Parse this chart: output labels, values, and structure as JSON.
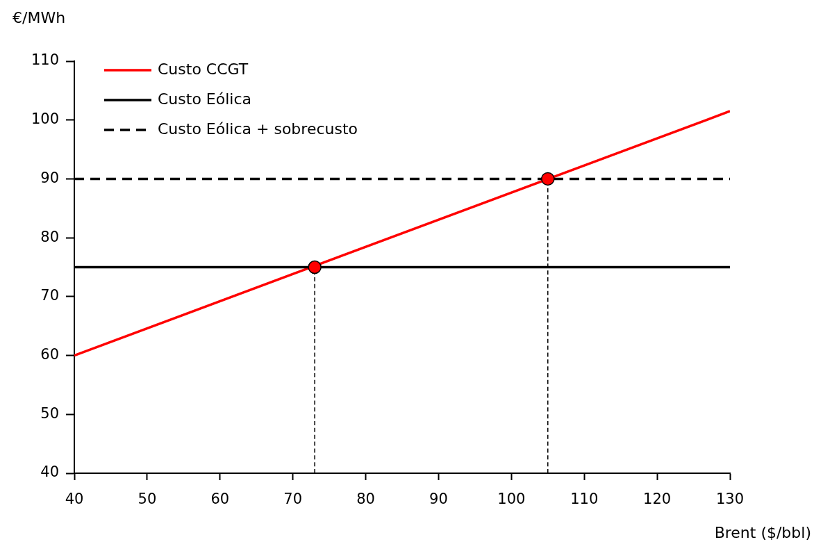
{
  "chart_data": {
    "type": "line",
    "xlabel": "Brent ($/bbl)",
    "ylabel": "€/MWh",
    "legend": "top left",
    "xlim": [
      40,
      130
    ],
    "xticks": [
      40,
      50,
      60,
      70,
      80,
      90,
      100,
      110,
      120,
      130
    ],
    "ylim": [
      40,
      110
    ],
    "yticks": [
      40,
      50,
      60,
      70,
      80,
      90,
      100,
      110
    ],
    "series": [
      {
        "name": "Custo CCGT",
        "color": "#ff0000",
        "x": [
          40,
          130
        ],
        "values": [
          60,
          101.5
        ]
      },
      {
        "name": "Custo Eólica",
        "color": "#000000",
        "x": [
          40,
          130
        ],
        "values": [
          75,
          75
        ]
      },
      {
        "name": "Custo Eólica + sobrecusto",
        "color": "#000000",
        "x": [
          40,
          130
        ],
        "values": [
          90,
          90
        ],
        "line_style": "dashed"
      },
      {
        "color": "#000000",
        "x": [
          73,
          73
        ],
        "values": [
          40,
          75
        ],
        "line_style": "dashed"
      },
      {
        "color": "#000000",
        "x": [
          105,
          105
        ],
        "values": [
          40,
          90
        ],
        "line_style": "dashed"
      },
      {
        "type": "scatter",
        "color": "#ff0000",
        "x": [
          73,
          105
        ],
        "values": [
          75,
          90
        ],
        "marker": "circle"
      }
    ]
  }
}
